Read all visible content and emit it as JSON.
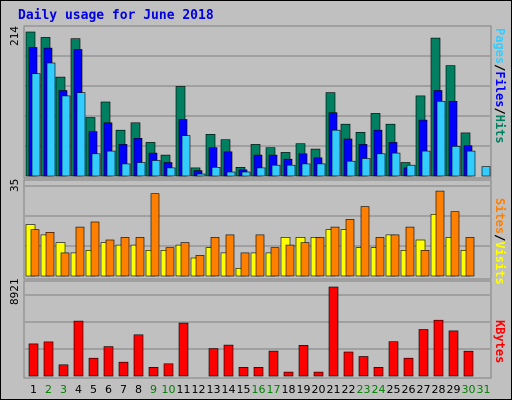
{
  "chart_data": [
    {
      "type": "bar",
      "title": "Daily usage for June 2018",
      "ymax_label": "214",
      "right_label": [
        "Pages",
        "/",
        "Files",
        "/",
        "Hits"
      ],
      "right_label_colors": [
        "#33ccff",
        "#000000",
        "#0000ff",
        "#000000",
        "#008060"
      ],
      "categories": [
        "1",
        "2",
        "3",
        "4",
        "5",
        "6",
        "7",
        "8",
        "9",
        "10",
        "11",
        "12",
        "13",
        "14",
        "15",
        "16",
        "17",
        "18",
        "19",
        "20",
        "21",
        "22",
        "23",
        "24",
        "25",
        "26",
        "27",
        "28",
        "29",
        "30",
        "31"
      ],
      "ylim": [
        0,
        214
      ],
      "series": [
        {
          "key": "hits",
          "color": "#008060",
          "values": [
            214,
            206,
            147,
            204,
            87,
            110,
            68,
            79,
            50,
            31,
            133,
            12,
            62,
            54,
            13,
            47,
            42,
            35,
            48,
            40,
            124,
            77,
            65,
            93,
            77,
            20,
            119,
            205,
            164,
            64,
            0
          ]
        },
        {
          "key": "files",
          "color": "#0000ff",
          "values": [
            191,
            190,
            127,
            188,
            66,
            79,
            47,
            56,
            34,
            20,
            84,
            8,
            42,
            36,
            9,
            31,
            31,
            25,
            33,
            27,
            94,
            55,
            47,
            68,
            50,
            12,
            83,
            127,
            111,
            45,
            0
          ]
        },
        {
          "key": "pages",
          "color": "#33ccff",
          "values": [
            152,
            168,
            119,
            124,
            33,
            37,
            18,
            20,
            23,
            12,
            60,
            3,
            13,
            6,
            6,
            12,
            16,
            16,
            18,
            18,
            68,
            22,
            26,
            33,
            34,
            16,
            37,
            111,
            44,
            37,
            14
          ]
        }
      ]
    },
    {
      "type": "bar",
      "ymax_label": "35",
      "right_label": [
        "Sites",
        "/",
        "Visits"
      ],
      "right_label_colors": [
        "#ff8000",
        "#000000",
        "#ffff00"
      ],
      "categories": [
        "1",
        "2",
        "3",
        "4",
        "5",
        "6",
        "7",
        "8",
        "9",
        "10",
        "11",
        "12",
        "13",
        "14",
        "15",
        "16",
        "17",
        "18",
        "19",
        "20",
        "21",
        "22",
        "23",
        "24",
        "25",
        "26",
        "27",
        "28",
        "29",
        "30",
        "31"
      ],
      "ylim": [
        0,
        35
      ],
      "series": [
        {
          "key": "visits",
          "color": "#ffff00",
          "values": [
            20,
            16,
            13,
            9,
            10,
            13,
            12,
            12,
            10,
            10,
            12,
            7,
            11,
            9,
            3,
            9,
            9,
            15,
            15,
            15,
            18,
            18,
            11,
            11,
            16,
            10,
            14,
            24,
            15,
            10,
            0
          ]
        },
        {
          "key": "sites",
          "color": "#ff8000",
          "values": [
            18,
            17,
            9,
            19,
            21,
            14,
            15,
            15,
            32,
            11,
            13,
            8,
            15,
            16,
            9,
            16,
            11,
            12,
            13,
            15,
            19,
            22,
            27,
            15,
            16,
            19,
            10,
            33,
            25,
            15,
            0
          ]
        }
      ]
    },
    {
      "type": "bar",
      "ymax_label": "8921",
      "right_label": [
        "KBytes"
      ],
      "right_label_colors": [
        "#ff0000"
      ],
      "categories": [
        "1",
        "2",
        "3",
        "4",
        "5",
        "6",
        "7",
        "8",
        "9",
        "10",
        "11",
        "12",
        "13",
        "14",
        "15",
        "16",
        "17",
        "18",
        "19",
        "20",
        "21",
        "22",
        "23",
        "24",
        "25",
        "26",
        "27",
        "28",
        "29",
        "30",
        "31"
      ],
      "ylim": [
        0,
        8921
      ],
      "series": [
        {
          "key": "kbytes",
          "color": "#ff0000",
          "values": [
            3220,
            3420,
            1120,
            5500,
            1780,
            2950,
            1380,
            4130,
            870,
            1220,
            5300,
            0,
            2760,
            3100,
            870,
            870,
            2500,
            390,
            3080,
            390,
            8921,
            2410,
            1950,
            870,
            3440,
            1780,
            4660,
            5590,
            4520,
            2490,
            0
          ]
        }
      ]
    }
  ],
  "x_axis": {
    "labels": [
      "1",
      "2",
      "3",
      "4",
      "5",
      "6",
      "7",
      "8",
      "9",
      "10",
      "11",
      "12",
      "13",
      "14",
      "15",
      "16",
      "17",
      "18",
      "19",
      "20",
      "21",
      "22",
      "23",
      "24",
      "25",
      "26",
      "27",
      "28",
      "29",
      "30",
      "31"
    ],
    "weekend_days": [
      2,
      3,
      9,
      10,
      16,
      17,
      23,
      24,
      30,
      31
    ],
    "weekday_color": "#000000",
    "weekend_color": "#008000"
  }
}
